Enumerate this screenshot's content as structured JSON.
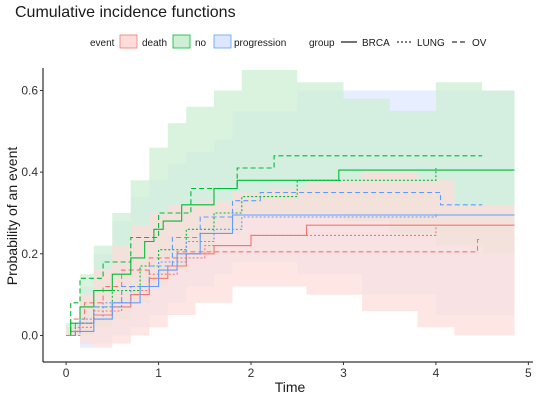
{
  "chart_data": {
    "type": "line",
    "title": "Cumulative incidence functions",
    "xlabel": "Time",
    "ylabel": "Probability of an event",
    "xlim": [
      -0.25,
      5.05
    ],
    "ylim": [
      -0.065,
      0.655
    ],
    "x_ticks": [
      0,
      1,
      2,
      3,
      4,
      5
    ],
    "y_ticks": [
      0.0,
      0.2,
      0.4,
      0.6
    ],
    "x_tick_labels": [
      "0",
      "1",
      "2",
      "3",
      "4",
      "5"
    ],
    "y_tick_labels": [
      "0.0",
      "0.2",
      "0.4",
      "0.6"
    ],
    "grid": false,
    "legend_position": "top",
    "legend": {
      "event_title": "event",
      "events": [
        {
          "label": "death",
          "color": "#F8766D",
          "fill": "#FDDDDB"
        },
        {
          "label": "no",
          "color": "#00BA38",
          "fill": "#CDEFD4"
        },
        {
          "label": "progression",
          "color": "#619CFF",
          "fill": "#DDE8FF"
        }
      ],
      "group_title": "group",
      "groups": [
        {
          "label": "BRCA",
          "linestyle": "solid"
        },
        {
          "label": "LUNG",
          "linestyle": "dotted"
        },
        {
          "label": "OV",
          "linestyle": "dashed"
        }
      ]
    },
    "series": [
      {
        "event": "death",
        "group": "BRCA",
        "x": [
          0,
          0.05,
          0.15,
          0.3,
          0.5,
          0.7,
          0.9,
          1.1,
          1.3,
          1.6,
          2.0,
          2.6,
          4.85
        ],
        "y": [
          0,
          0.01,
          0.03,
          0.05,
          0.07,
          0.1,
          0.14,
          0.17,
          0.2,
          0.22,
          0.245,
          0.27,
          0.27
        ]
      },
      {
        "event": "death",
        "group": "LUNG",
        "x": [
          0,
          0.1,
          0.3,
          0.6,
          0.9,
          1.2,
          1.5,
          2.0,
          4.0
        ],
        "y": [
          0,
          0.02,
          0.06,
          0.11,
          0.15,
          0.19,
          0.22,
          0.245,
          0.27
        ]
      },
      {
        "event": "death",
        "group": "OV",
        "x": [
          0,
          0.05,
          0.2,
          0.4,
          0.6,
          0.9,
          1.2,
          1.6,
          4.45,
          4.5
        ],
        "y": [
          0,
          0.04,
          0.08,
          0.12,
          0.16,
          0.19,
          0.205,
          0.205,
          0.235,
          0.235
        ]
      },
      {
        "event": "no",
        "group": "BRCA",
        "x": [
          0,
          0.05,
          0.15,
          0.3,
          0.5,
          0.7,
          0.85,
          0.95,
          1.05,
          1.25,
          1.6,
          1.85,
          2.95,
          4.85
        ],
        "y": [
          0,
          0.03,
          0.07,
          0.11,
          0.15,
          0.19,
          0.23,
          0.26,
          0.28,
          0.32,
          0.36,
          0.38,
          0.405,
          0.405
        ]
      },
      {
        "event": "no",
        "group": "LUNG",
        "x": [
          0,
          0.1,
          0.3,
          0.5,
          0.8,
          1.0,
          1.3,
          1.6,
          1.9,
          2.5,
          4.0
        ],
        "y": [
          0,
          0.03,
          0.07,
          0.11,
          0.17,
          0.21,
          0.26,
          0.3,
          0.34,
          0.38,
          0.41
        ]
      },
      {
        "event": "no",
        "group": "OV",
        "x": [
          0,
          0.05,
          0.15,
          0.4,
          0.7,
          1.0,
          1.35,
          1.85,
          2.25,
          4.5
        ],
        "y": [
          0,
          0.08,
          0.14,
          0.18,
          0.24,
          0.3,
          0.36,
          0.41,
          0.44,
          0.44
        ]
      },
      {
        "event": "progression",
        "group": "BRCA",
        "x": [
          0,
          0.1,
          0.3,
          0.5,
          0.8,
          1.0,
          1.2,
          1.45,
          1.8,
          4.05,
          4.85
        ],
        "y": [
          0,
          0.01,
          0.04,
          0.08,
          0.12,
          0.16,
          0.2,
          0.25,
          0.295,
          0.295,
          0.295
        ]
      },
      {
        "event": "progression",
        "group": "LUNG",
        "x": [
          0,
          0.15,
          0.4,
          0.7,
          1.0,
          1.3,
          1.6,
          1.9,
          4.0
        ],
        "y": [
          0,
          0.04,
          0.08,
          0.12,
          0.18,
          0.23,
          0.26,
          0.29,
          0.3
        ]
      },
      {
        "event": "progression",
        "group": "OV",
        "x": [
          0,
          0.1,
          0.3,
          0.6,
          0.9,
          1.15,
          1.45,
          1.8,
          2.1,
          4.05,
          4.5
        ],
        "y": [
          0,
          0.03,
          0.07,
          0.12,
          0.17,
          0.24,
          0.29,
          0.33,
          0.35,
          0.32,
          0.32
        ]
      }
    ],
    "bands": [
      {
        "event": "progression",
        "x": [
          0,
          0.15,
          0.3,
          0.5,
          0.7,
          0.9,
          1.1,
          1.3,
          1.6,
          1.8,
          2.5,
          3.2,
          4.0,
          4.85
        ],
        "lower": [
          0,
          -0.03,
          -0.02,
          0.0,
          0.02,
          0.05,
          0.08,
          0.12,
          0.15,
          0.18,
          0.15,
          0.1,
          0.05,
          0.1
        ],
        "upper": [
          0.02,
          0.12,
          0.2,
          0.28,
          0.34,
          0.38,
          0.42,
          0.45,
          0.48,
          0.55,
          0.6,
          0.6,
          0.6,
          0.45
        ]
      },
      {
        "event": "no",
        "x": [
          0,
          0.15,
          0.3,
          0.5,
          0.7,
          0.9,
          1.1,
          1.3,
          1.6,
          1.9,
          2.5,
          3.0,
          3.5,
          4.0,
          4.5,
          4.85
        ],
        "lower": [
          0,
          0.0,
          0.02,
          0.04,
          0.08,
          0.12,
          0.16,
          0.2,
          0.25,
          0.3,
          0.3,
          0.28,
          0.25,
          0.22,
          0.2,
          0.28
        ],
        "upper": [
          0.03,
          0.15,
          0.22,
          0.3,
          0.38,
          0.46,
          0.52,
          0.56,
          0.6,
          0.65,
          0.62,
          0.58,
          0.55,
          0.62,
          0.6,
          0.58
        ]
      },
      {
        "event": "death",
        "x": [
          0,
          0.15,
          0.3,
          0.5,
          0.7,
          0.9,
          1.1,
          1.4,
          1.8,
          2.2,
          2.6,
          3.2,
          3.8,
          4.2,
          4.85
        ],
        "lower": [
          0,
          -0.02,
          -0.03,
          -0.02,
          0.0,
          0.02,
          0.05,
          0.08,
          0.12,
          0.12,
          0.1,
          0.06,
          0.02,
          0.0,
          -0.01
        ],
        "upper": [
          0.02,
          0.1,
          0.16,
          0.22,
          0.27,
          0.3,
          0.32,
          0.33,
          0.35,
          0.36,
          0.38,
          0.4,
          0.38,
          0.32,
          0.25
        ]
      }
    ]
  }
}
